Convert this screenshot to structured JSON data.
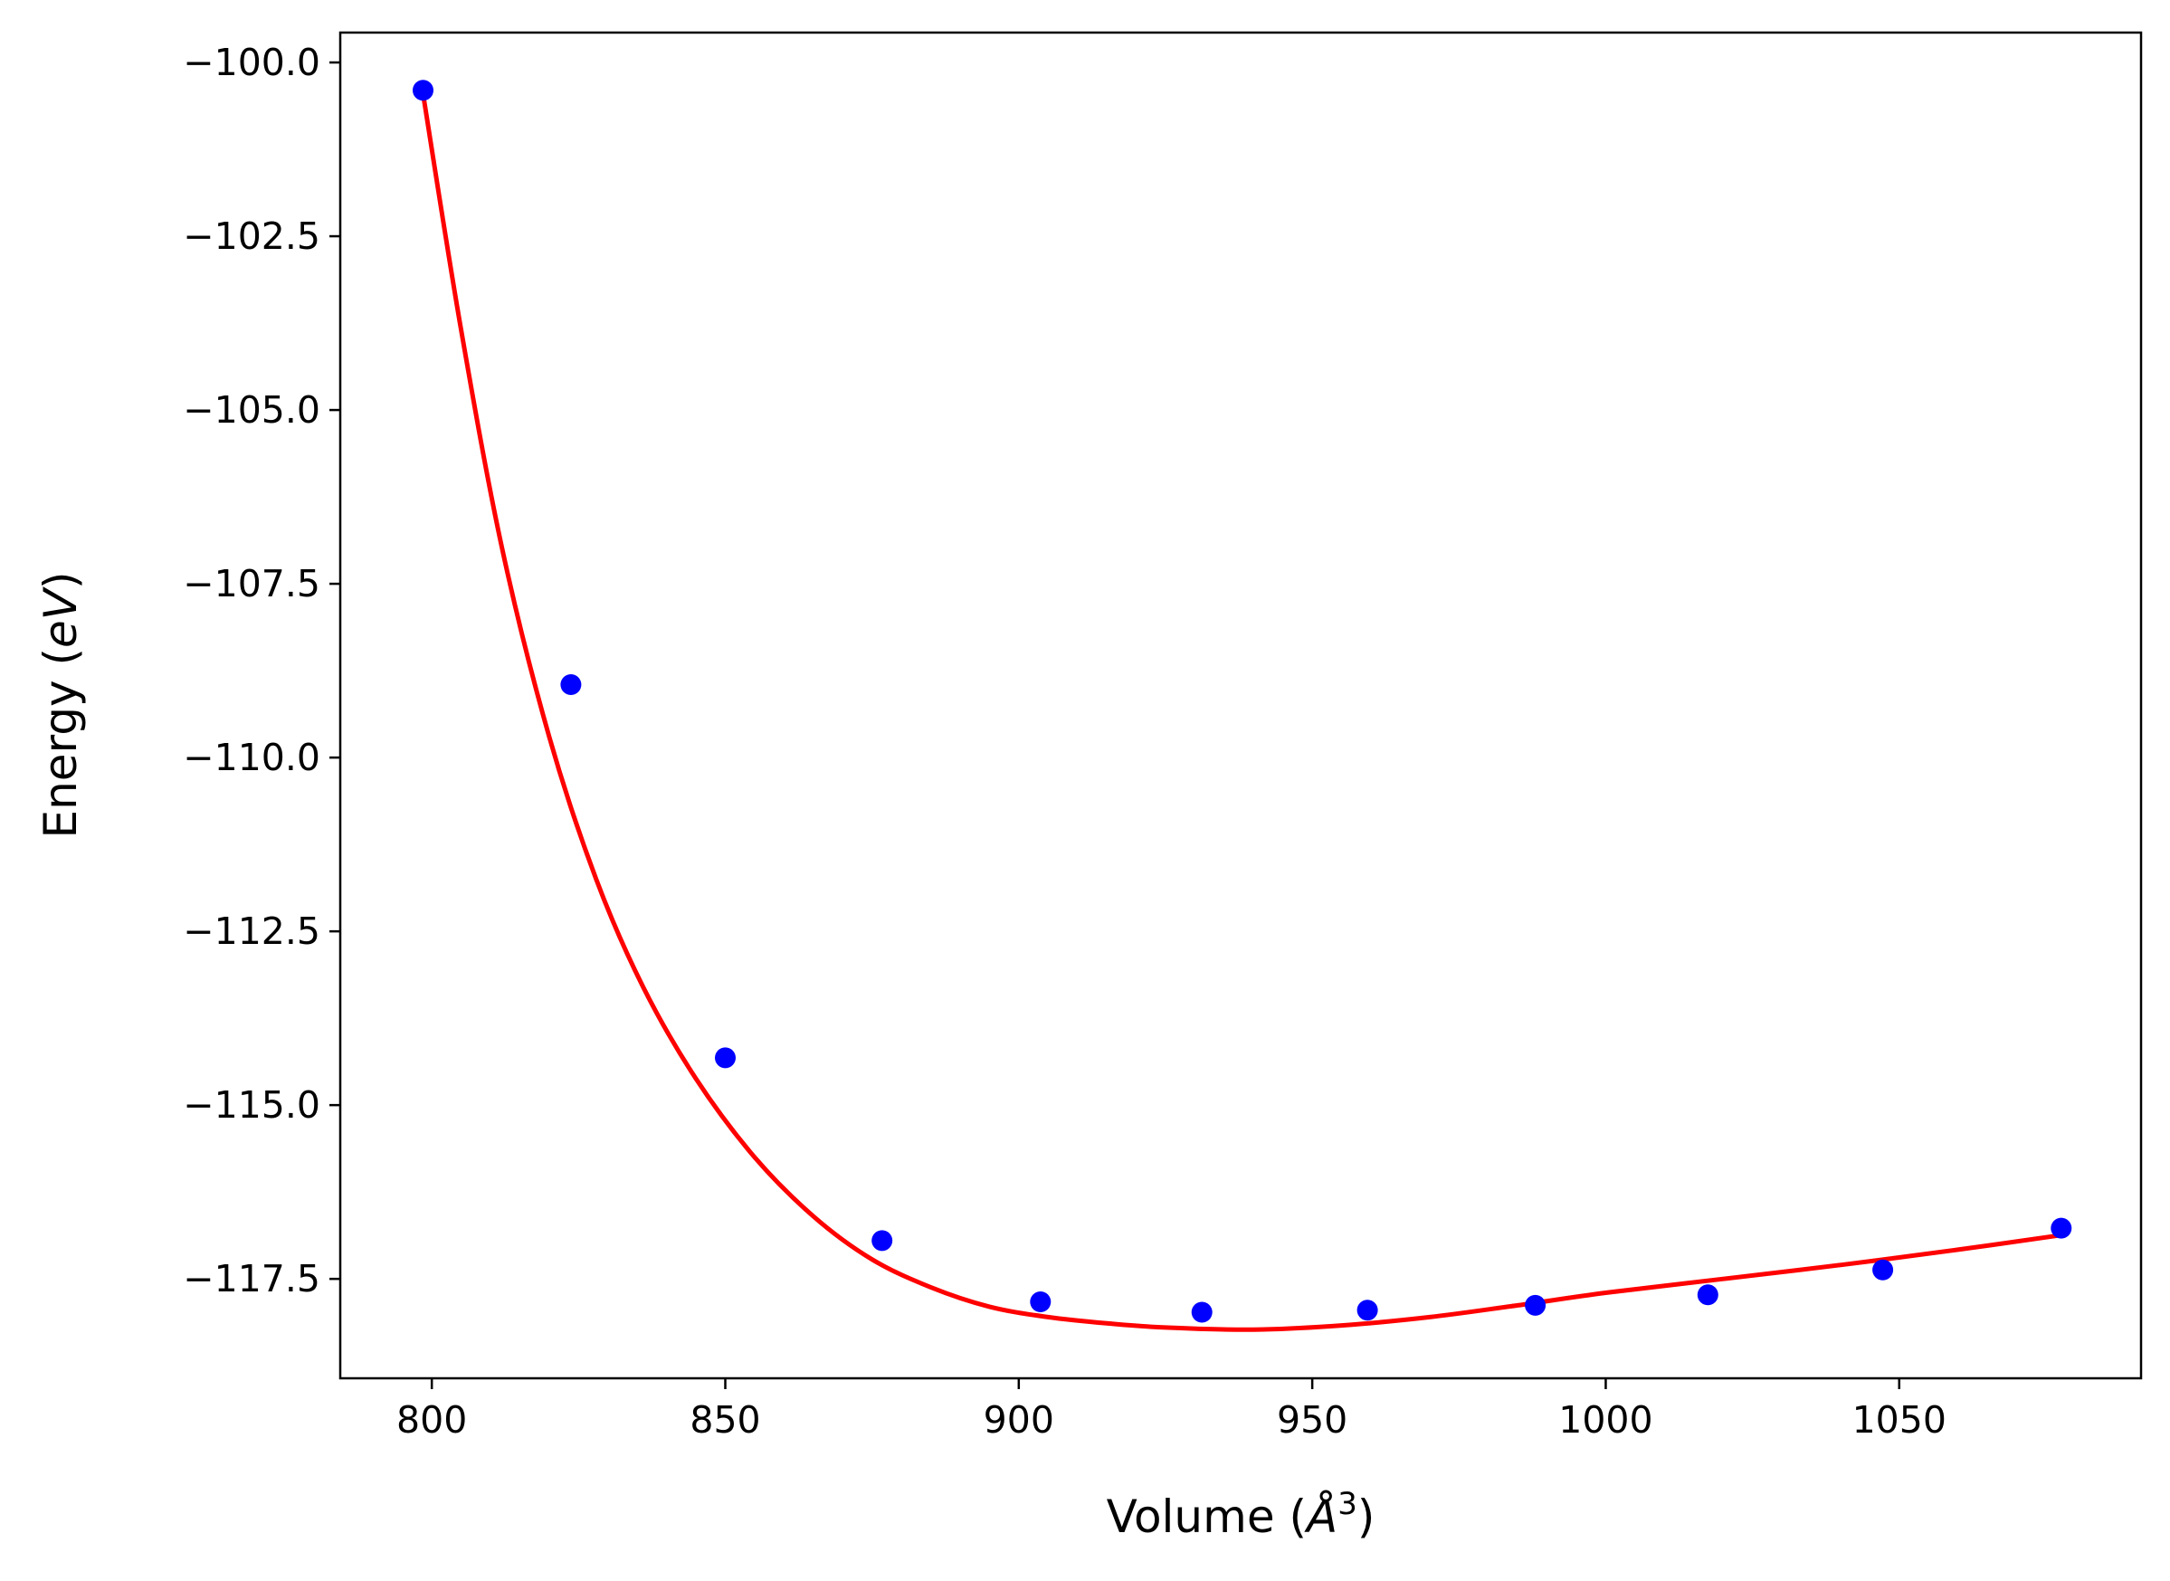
{
  "chart_data": {
    "type": "scatter",
    "title": "",
    "xlabel": {
      "prefix": "Volume (",
      "symbol": "Å",
      "exponent": "3",
      "suffix": ")"
    },
    "ylabel": {
      "prefix": "Energy (",
      "unit": "eV",
      "suffix": ")"
    },
    "xlim": [
      784.4,
      1091.2
    ],
    "ylim": [
      -118.93,
      -99.57
    ],
    "xticks": [
      800,
      850,
      900,
      950,
      1000,
      1050
    ],
    "xtick_labels": [
      "800",
      "850",
      "900",
      "950",
      "1000",
      "1050"
    ],
    "yticks": [
      -100.0,
      -102.5,
      -105.0,
      -107.5,
      -110.0,
      -112.5,
      -115.0,
      -117.5
    ],
    "ytick_labels": [
      "−100.0",
      "−102.5",
      "−105.0",
      "−107.5",
      "−110.0",
      "−112.5",
      "−115.0",
      "−117.5"
    ],
    "grid": false,
    "legend": "none",
    "series": [
      {
        "kind": "scatter",
        "color": "#0000ff",
        "x": [
          798.5,
          823.7,
          850.0,
          876.7,
          903.7,
          931.2,
          959.4,
          988.0,
          1017.4,
          1047.2,
          1077.6
        ],
        "y": [
          -100.4,
          -108.95,
          -114.32,
          -116.95,
          -117.83,
          -117.98,
          -117.95,
          -117.88,
          -117.73,
          -117.37,
          -116.77
        ]
      },
      {
        "kind": "line",
        "color": "#ff0000",
        "x": [
          798.5,
          805,
          812,
          820,
          828,
          836,
          845,
          855,
          865,
          875,
          885,
          895,
          905,
          915,
          925,
          940,
          955,
          970,
          985,
          1000,
          1020,
          1040,
          1060,
          1077.6
        ],
        "y": [
          -100.45,
          -103.85,
          -107.0,
          -109.7,
          -111.75,
          -113.3,
          -114.62,
          -115.75,
          -116.6,
          -117.22,
          -117.62,
          -117.9,
          -118.05,
          -118.14,
          -118.2,
          -118.23,
          -118.17,
          -118.05,
          -117.88,
          -117.7,
          -117.5,
          -117.3,
          -117.08,
          -116.87
        ]
      }
    ]
  }
}
